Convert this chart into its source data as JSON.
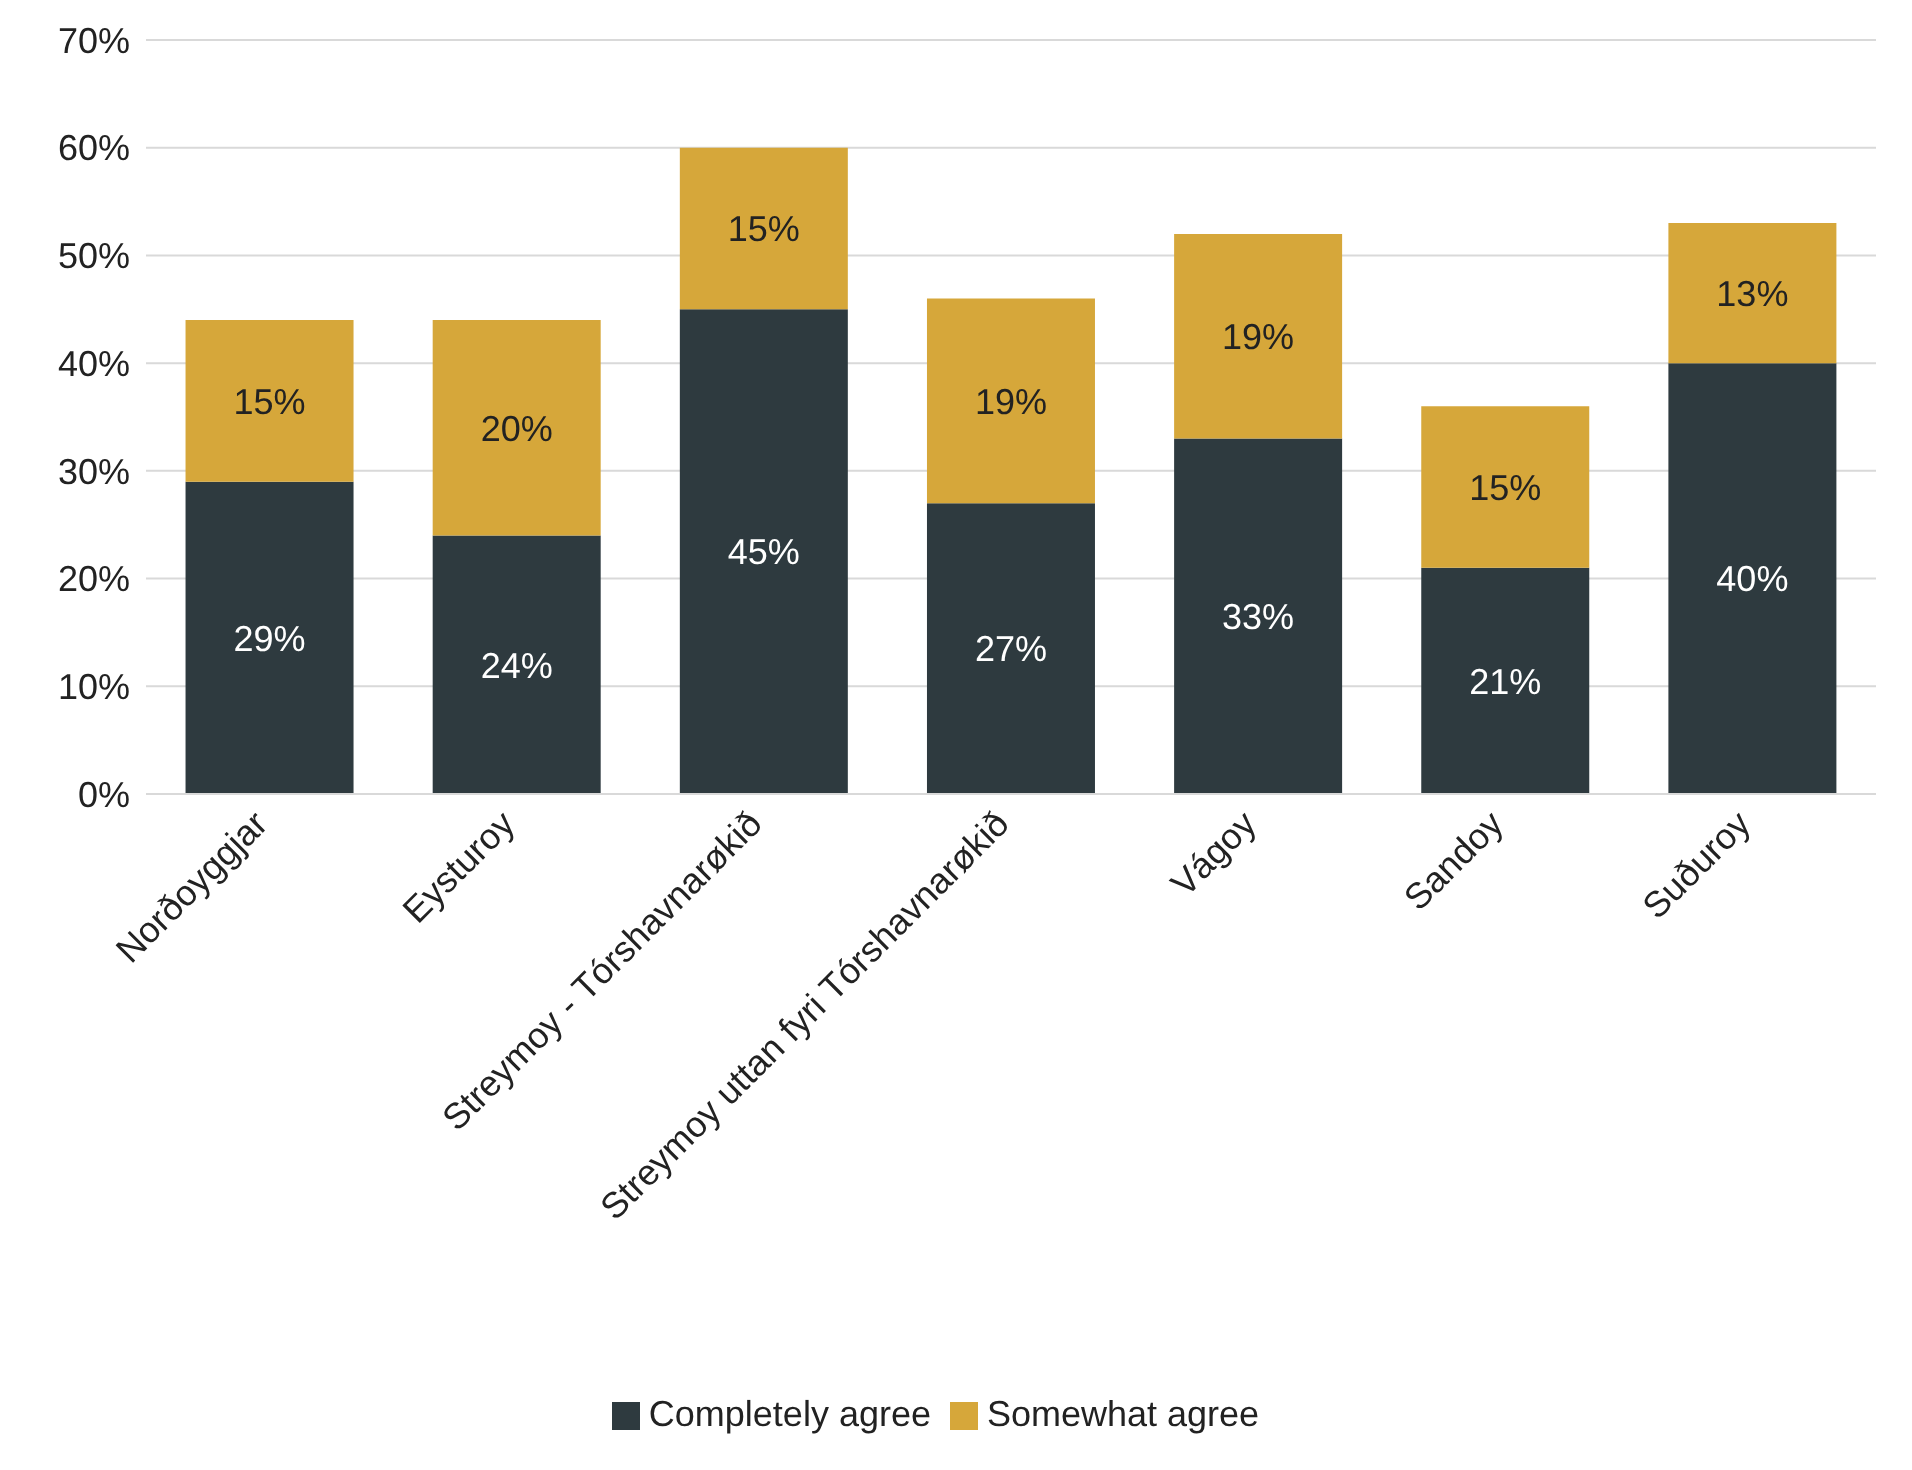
{
  "chart_data": {
    "type": "bar",
    "stacked": true,
    "categories": [
      "Norðoyggjar",
      "Eysturoy",
      "Streymoy - Tórshavnarøkið",
      "Streymoy uttan fyri Tórshavnarøkið",
      "Vágoy",
      "Sandoy",
      "Suðuroy"
    ],
    "series": [
      {
        "name": "Completely agree",
        "color": "#2e3a3f",
        "values": [
          29,
          24,
          45,
          27,
          33,
          21,
          40
        ],
        "value_labels": [
          "29%",
          "24%",
          "45%",
          "27%",
          "33%",
          "21%",
          "40%"
        ]
      },
      {
        "name": "Somewhat agree",
        "color": "#d6a73a",
        "values": [
          15,
          20,
          15,
          19,
          19,
          15,
          13
        ],
        "value_labels": [
          "15%",
          "20%",
          "15%",
          "19%",
          "19%",
          "15%",
          "13%"
        ]
      }
    ],
    "ylim": [
      0,
      70
    ],
    "yticks": [
      {
        "value": 0,
        "label": "0%"
      },
      {
        "value": 10,
        "label": "10%"
      },
      {
        "value": 20,
        "label": "20%"
      },
      {
        "value": 30,
        "label": "30%"
      },
      {
        "value": 40,
        "label": "40%"
      },
      {
        "value": 50,
        "label": "50%"
      },
      {
        "value": 60,
        "label": "60%"
      },
      {
        "value": 70,
        "label": "70%"
      }
    ],
    "grid": "y",
    "legend": "bottom"
  }
}
